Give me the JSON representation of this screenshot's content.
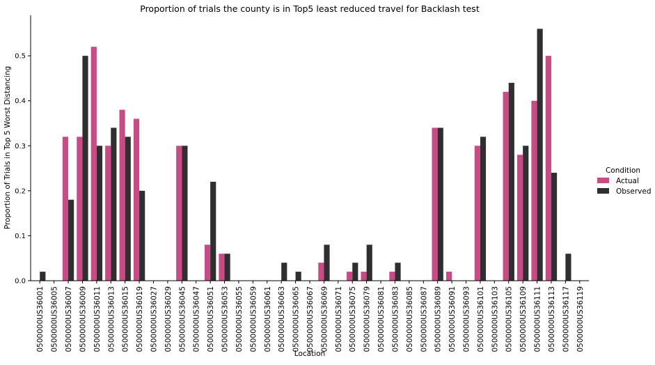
{
  "chart_data": {
    "type": "bar",
    "title": "Proportion of trials the county is in Top5 least reduced travel for Backlash test",
    "xlabel": "Location",
    "ylabel": "Proportion of Trials in Top 5 Worst Distancing",
    "ylim": [
      0,
      0.59
    ],
    "yticks": [
      0.0,
      0.1,
      0.2,
      0.3,
      0.4,
      0.5
    ],
    "grid": false,
    "legend": {
      "title": "Condition",
      "placement": "right"
    },
    "categories": [
      "0500000US36001",
      "0500000US36005",
      "0500000US36007",
      "0500000US36009",
      "0500000US36011",
      "0500000US36013",
      "0500000US36015",
      "0500000US36019",
      "0500000US36027",
      "0500000US36029",
      "0500000US36045",
      "0500000US36047",
      "0500000US36051",
      "0500000US36053",
      "0500000US36055",
      "0500000US36059",
      "0500000US36061",
      "0500000US36063",
      "0500000US36065",
      "0500000US36067",
      "0500000US36069",
      "0500000US36071",
      "0500000US36075",
      "0500000US36079",
      "0500000US36081",
      "0500000US36083",
      "0500000US36085",
      "0500000US36087",
      "0500000US36089",
      "0500000US36091",
      "0500000US36093",
      "0500000US36101",
      "0500000US36103",
      "0500000US36105",
      "0500000US36109",
      "0500000US36111",
      "0500000US36113",
      "0500000US36117",
      "0500000US36119"
    ],
    "series": [
      {
        "name": "Actual",
        "color": "#c94a85",
        "values": [
          0,
          0,
          0.32,
          0.32,
          0.52,
          0.3,
          0.38,
          0.36,
          0,
          0,
          0.3,
          0,
          0.08,
          0.06,
          0,
          0,
          0,
          0,
          0,
          0,
          0.04,
          0,
          0.02,
          0.02,
          0,
          0.02,
          0,
          0,
          0.34,
          0.02,
          0,
          0.3,
          0,
          0.42,
          0.28,
          0.4,
          0.5,
          0,
          0
        ]
      },
      {
        "name": "Observed",
        "color": "#2f2f2f",
        "values": [
          0.02,
          0,
          0.18,
          0.5,
          0.3,
          0.34,
          0.32,
          0.2,
          0,
          0,
          0.3,
          0,
          0.22,
          0.06,
          0,
          0,
          0,
          0.04,
          0.02,
          0,
          0.08,
          0,
          0.04,
          0.08,
          0,
          0.04,
          0,
          0,
          0.34,
          0,
          0,
          0.32,
          0,
          0.44,
          0.3,
          0.56,
          0.24,
          0.06,
          0
        ]
      }
    ]
  }
}
